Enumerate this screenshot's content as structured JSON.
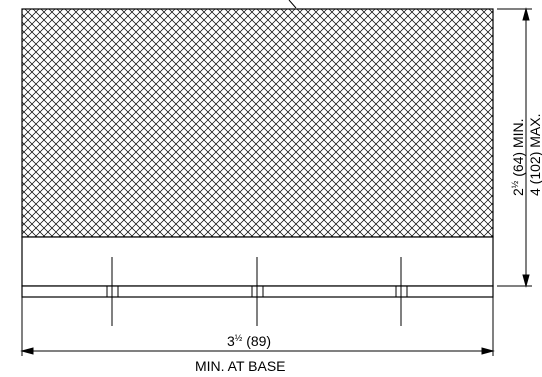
{
  "diagram": {
    "height_dimension": {
      "min_whole": "2",
      "min_fraction": "½",
      "min_rest": " (64) MIN.",
      "max_text": "4 (102) MAX."
    },
    "width_dimension": {
      "whole": "3",
      "fraction": "½",
      "rest": " (89)",
      "note": "MIN. AT BASE"
    }
  }
}
